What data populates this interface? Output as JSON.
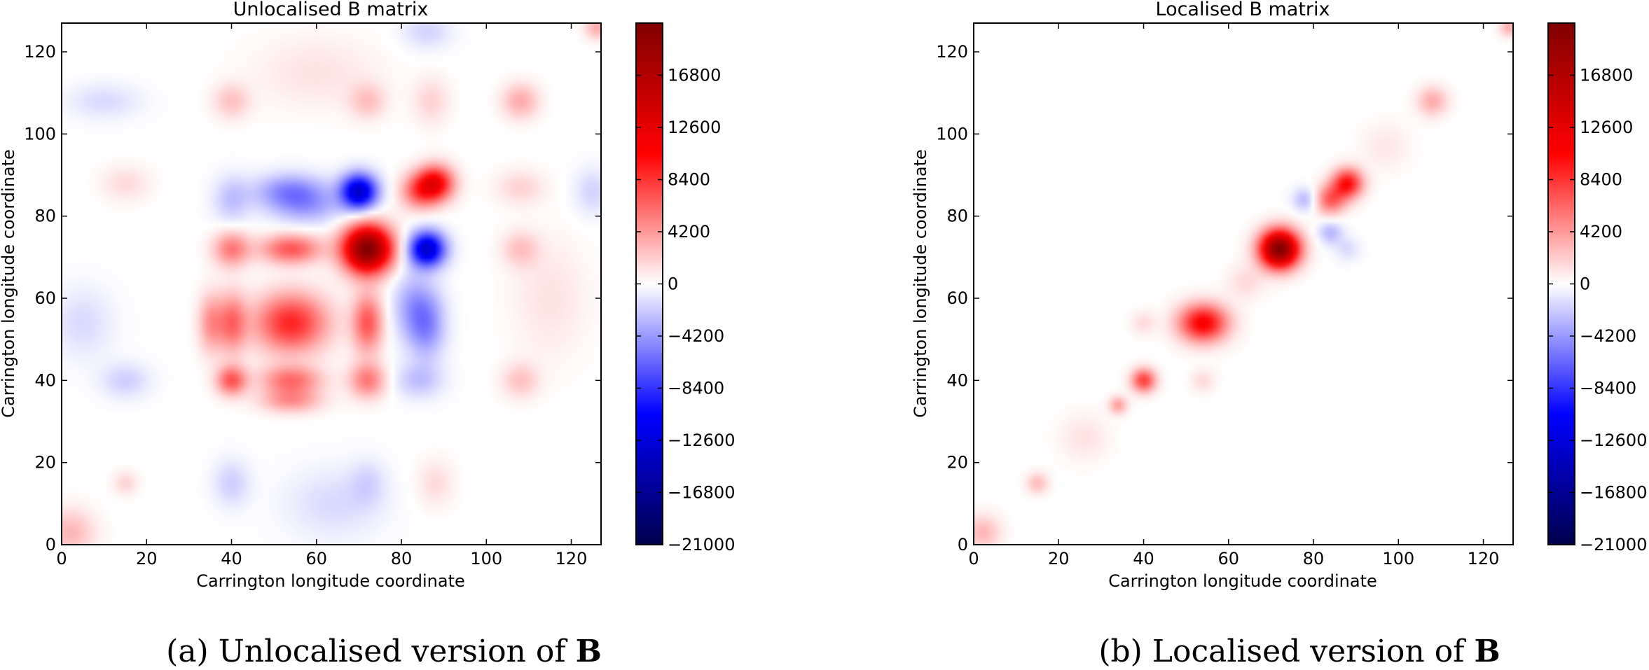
{
  "chart_data": [
    {
      "type": "heatmap",
      "title": "Unlocalised B matrix",
      "xlabel": "Carrington longitude coordinate",
      "ylabel": "Carrington longitude coordinate",
      "xlim": [
        0,
        127
      ],
      "ylim": [
        0,
        127
      ],
      "xticks": [
        0,
        20,
        40,
        60,
        80,
        100,
        120
      ],
      "yticks": [
        0,
        20,
        40,
        60,
        80,
        100,
        120
      ],
      "colormap": "seismic",
      "colorbar": {
        "vmin": -21000,
        "vmax": 21000,
        "ticks": [
          -21000,
          -16800,
          -12600,
          -8400,
          -4200,
          0,
          4200,
          8400,
          12600,
          16800
        ]
      },
      "blobs": [
        {
          "x": 72,
          "y": 72,
          "value": 21000,
          "sx": 4,
          "sy": 4
        },
        {
          "x": 88,
          "y": 88,
          "value": 11000,
          "sx": 3,
          "sy": 3
        },
        {
          "x": 84,
          "y": 86,
          "value": 6000,
          "sx": 3,
          "sy": 3
        },
        {
          "x": 54,
          "y": 54,
          "value": 9000,
          "sx": 6,
          "sy": 5
        },
        {
          "x": 40,
          "y": 40,
          "value": 7000,
          "sx": 2.5,
          "sy": 2.5
        },
        {
          "x": 2,
          "y": 3,
          "value": 3000,
          "sx": 4,
          "sy": 4
        },
        {
          "x": 15,
          "y": 15,
          "value": 1800,
          "sx": 2,
          "sy": 2
        },
        {
          "x": 108,
          "y": 108,
          "value": 3500,
          "sx": 3,
          "sy": 3
        },
        {
          "x": 126,
          "y": 126,
          "value": 3500,
          "sx": 2,
          "sy": 2
        },
        {
          "x": 70,
          "y": 86,
          "value": -13500,
          "sx": 3,
          "sy": 3
        },
        {
          "x": 86,
          "y": 72,
          "value": -13500,
          "sx": 3,
          "sy": 3
        },
        {
          "x": 72,
          "y": 54,
          "value": 7000,
          "sx": 2.5,
          "sy": 5
        },
        {
          "x": 54,
          "y": 72,
          "value": 7000,
          "sx": 5,
          "sy": 2.5
        },
        {
          "x": 40,
          "y": 72,
          "value": 5500,
          "sx": 3,
          "sy": 3
        },
        {
          "x": 72,
          "y": 40,
          "value": 5500,
          "sx": 3,
          "sy": 3
        },
        {
          "x": 54,
          "y": 40,
          "value": 6000,
          "sx": 5,
          "sy": 2.5
        },
        {
          "x": 40,
          "y": 54,
          "value": 6000,
          "sx": 2.5,
          "sy": 5
        },
        {
          "x": 35,
          "y": 54,
          "value": 4200,
          "sx": 2,
          "sy": 5
        },
        {
          "x": 54,
          "y": 35,
          "value": 4200,
          "sx": 5,
          "sy": 2
        },
        {
          "x": 86,
          "y": 54,
          "value": -5000,
          "sx": 3,
          "sy": 6
        },
        {
          "x": 54,
          "y": 86,
          "value": -5000,
          "sx": 6,
          "sy": 3
        },
        {
          "x": 58,
          "y": 82,
          "value": -3000,
          "sx": 6,
          "sy": 3
        },
        {
          "x": 82,
          "y": 58,
          "value": -3000,
          "sx": 3,
          "sy": 6
        },
        {
          "x": 40,
          "y": 84,
          "value": -2500,
          "sx": 3,
          "sy": 4
        },
        {
          "x": 84,
          "y": 40,
          "value": -2500,
          "sx": 4,
          "sy": 3
        },
        {
          "x": 88,
          "y": 72,
          "value": 0,
          "sx": 1,
          "sy": 1
        },
        {
          "x": 40,
          "y": 15,
          "value": -2000,
          "sx": 3,
          "sy": 4
        },
        {
          "x": 15,
          "y": 40,
          "value": -2000,
          "sx": 4,
          "sy": 3
        },
        {
          "x": 88,
          "y": 15,
          "value": 1500,
          "sx": 3,
          "sy": 4
        },
        {
          "x": 15,
          "y": 88,
          "value": 1500,
          "sx": 4,
          "sy": 3
        },
        {
          "x": 72,
          "y": 15,
          "value": -1500,
          "sx": 3,
          "sy": 4
        },
        {
          "x": 5,
          "y": 54,
          "value": -1500,
          "sx": 5,
          "sy": 6
        },
        {
          "x": 108,
          "y": 87,
          "value": 1800,
          "sx": 4,
          "sy": 3
        },
        {
          "x": 87,
          "y": 108,
          "value": 1800,
          "sx": 3,
          "sy": 4
        },
        {
          "x": 125,
          "y": 86,
          "value": -1800,
          "sx": 3,
          "sy": 4
        },
        {
          "x": 86,
          "y": 125,
          "value": -1800,
          "sx": 4,
          "sy": 3
        },
        {
          "x": 40,
          "y": 108,
          "value": 2500,
          "sx": 3,
          "sy": 3
        },
        {
          "x": 108,
          "y": 40,
          "value": 2500,
          "sx": 3,
          "sy": 3
        },
        {
          "x": 72,
          "y": 108,
          "value": 2500,
          "sx": 3,
          "sy": 3
        },
        {
          "x": 108,
          "y": 72,
          "value": 2500,
          "sx": 3,
          "sy": 3
        },
        {
          "x": 10,
          "y": 108,
          "value": -1500,
          "sx": 6,
          "sy": 3
        },
        {
          "x": 64,
          "y": 10,
          "value": -1500,
          "sx": 8,
          "sy": 6
        },
        {
          "x": 115,
          "y": 60,
          "value": 1200,
          "sx": 6,
          "sy": 10
        },
        {
          "x": 60,
          "y": 115,
          "value": 1200,
          "sx": 10,
          "sy": 6
        }
      ]
    },
    {
      "type": "heatmap",
      "title": "Localised B matrix",
      "xlabel": "Carrington longitude coordinate",
      "ylabel": "Carrington longitude coordinate",
      "xlim": [
        0,
        127
      ],
      "ylim": [
        0,
        127
      ],
      "xticks": [
        0,
        20,
        40,
        60,
        80,
        100,
        120
      ],
      "yticks": [
        0,
        20,
        40,
        60,
        80,
        100,
        120
      ],
      "colormap": "seismic",
      "colorbar": {
        "vmin": -21000,
        "vmax": 21000,
        "ticks": [
          -21000,
          -16800,
          -12600,
          -8400,
          -4200,
          0,
          4200,
          8400,
          12600,
          16800
        ]
      },
      "blobs": [
        {
          "x": 72,
          "y": 72,
          "value": 21000,
          "sx": 3.2,
          "sy": 3.2
        },
        {
          "x": 88,
          "y": 88,
          "value": 10000,
          "sx": 2.5,
          "sy": 2.5
        },
        {
          "x": 84,
          "y": 84,
          "value": 6500,
          "sx": 2.5,
          "sy": 2.5
        },
        {
          "x": 54,
          "y": 54,
          "value": 11000,
          "sx": 4,
          "sy": 3.2
        },
        {
          "x": 40,
          "y": 40,
          "value": 8000,
          "sx": 2,
          "sy": 2
        },
        {
          "x": 34,
          "y": 34,
          "value": 4000,
          "sx": 1.5,
          "sy": 1.5
        },
        {
          "x": 2,
          "y": 3,
          "value": 3000,
          "sx": 3,
          "sy": 3
        },
        {
          "x": 15,
          "y": 15,
          "value": 2800,
          "sx": 1.8,
          "sy": 1.8
        },
        {
          "x": 108,
          "y": 108,
          "value": 3500,
          "sx": 2.5,
          "sy": 2.5
        },
        {
          "x": 126,
          "y": 126,
          "value": 3500,
          "sx": 1.5,
          "sy": 1.5
        },
        {
          "x": 64,
          "y": 64,
          "value": 1500,
          "sx": 3,
          "sy": 3
        },
        {
          "x": 26,
          "y": 26,
          "value": 1200,
          "sx": 4,
          "sy": 4
        },
        {
          "x": 97,
          "y": 97,
          "value": 1000,
          "sx": 4,
          "sy": 4
        },
        {
          "x": 78,
          "y": 84,
          "value": -3000,
          "sx": 2,
          "sy": 2
        },
        {
          "x": 84,
          "y": 76,
          "value": -3000,
          "sx": 2,
          "sy": 2
        },
        {
          "x": 54,
          "y": 40,
          "value": 1500,
          "sx": 2,
          "sy": 2
        },
        {
          "x": 40,
          "y": 54,
          "value": 1500,
          "sx": 2,
          "sy": 2
        },
        {
          "x": 88,
          "y": 72,
          "value": -1500,
          "sx": 2,
          "sy": 2
        }
      ]
    }
  ],
  "captions": [
    {
      "prefix": "(a) Unlocalised version of ",
      "bold": "B"
    },
    {
      "prefix": "(b) Localised version of ",
      "bold": "B"
    }
  ]
}
